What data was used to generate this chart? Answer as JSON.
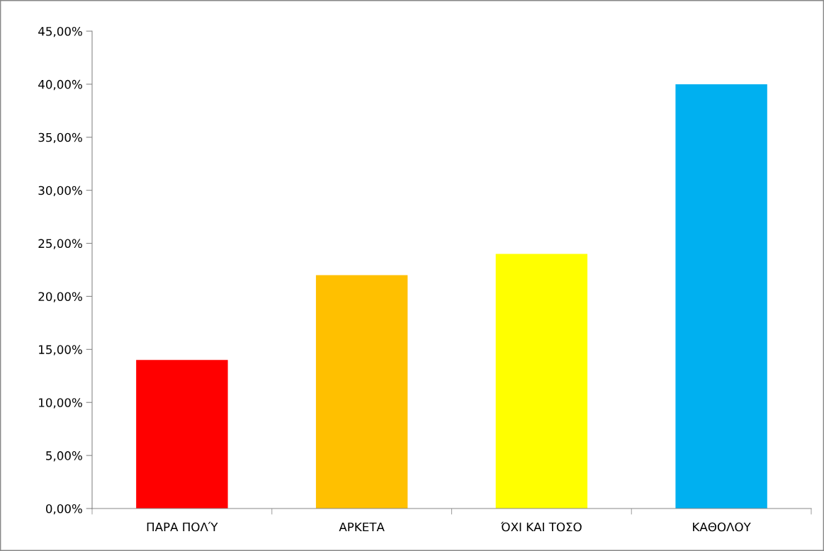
{
  "chart_data": {
    "type": "bar",
    "categories": [
      "ΠΑΡΑ ΠΟΛΎ",
      "ΑΡΚΕΤΑ",
      "ΌΧΙ ΚΑΙ ΤΟΣΟ",
      "ΚΑΘΟΛΟΥ"
    ],
    "values": [
      14,
      22,
      24,
      40
    ],
    "colors": [
      "#ff0000",
      "#ffc000",
      "#ffff00",
      "#00b0f0"
    ],
    "ylim": [
      0,
      45
    ],
    "yticks": [
      {
        "value": 0,
        "label": "0,00%"
      },
      {
        "value": 5,
        "label": "5,00%"
      },
      {
        "value": 10,
        "label": "10,00%"
      },
      {
        "value": 15,
        "label": "15,00%"
      },
      {
        "value": 20,
        "label": "20,00%"
      },
      {
        "value": 25,
        "label": "25,00%"
      },
      {
        "value": 30,
        "label": "30,00%"
      },
      {
        "value": 35,
        "label": "35,00%"
      },
      {
        "value": 40,
        "label": "40,00%"
      },
      {
        "value": 45,
        "label": "45,00%"
      }
    ],
    "grid": false,
    "legend": false
  }
}
